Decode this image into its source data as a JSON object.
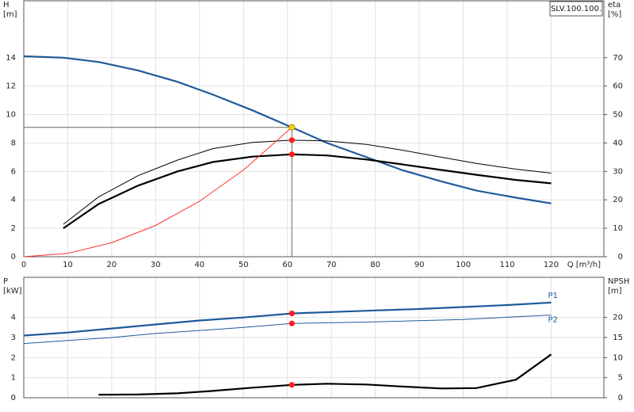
{
  "chart_data": [
    {
      "type": "line",
      "title": "SLV.100.100.",
      "ylabel": [
        "H",
        "[m]"
      ],
      "y2label": [
        "eta",
        "[%]"
      ],
      "xlabel": "Q [m³/h]",
      "xlim": [
        0,
        132
      ],
      "xticks": [
        0,
        10,
        20,
        30,
        40,
        50,
        60,
        70,
        80,
        90,
        100,
        110,
        120
      ],
      "ylim": [
        0,
        18
      ],
      "yticks": [
        0,
        2,
        4,
        6,
        8,
        10,
        12,
        14
      ],
      "y2lim": [
        0,
        90
      ],
      "y2ticks": [
        0,
        10,
        20,
        30,
        40,
        50,
        60,
        70
      ],
      "grid": true,
      "series": [
        {
          "color": "#1f5a9a",
          "thick": true,
          "x": [
            0,
            9,
            17,
            26,
            35,
            43,
            52,
            61,
            69,
            78,
            86,
            95,
            103,
            112,
            120
          ],
          "values": [
            14.1,
            14.0,
            13.7,
            13.1,
            12.3,
            11.4,
            10.3,
            9.1,
            8.0,
            7.0,
            6.1,
            5.3,
            4.65,
            4.15,
            3.75
          ]
        },
        {
          "color": "#000000",
          "thick": false,
          "axis": "y2",
          "x": [
            9,
            17,
            26,
            35,
            43,
            52,
            61,
            69,
            78,
            86,
            95,
            103,
            112,
            120
          ],
          "values": [
            11.4,
            21,
            28.5,
            34,
            38,
            40.2,
            41,
            40.7,
            39.5,
            37.5,
            35,
            32.8,
            30.8,
            29.4
          ]
        },
        {
          "color": "#000000",
          "thick": true,
          "axis": "y2",
          "x": [
            9,
            17,
            26,
            35,
            43,
            52,
            61,
            69,
            78,
            86,
            95,
            103,
            112,
            120
          ],
          "values": [
            10,
            18.5,
            25,
            30,
            33.3,
            35.2,
            36,
            35.6,
            34.2,
            32.5,
            30.5,
            28.8,
            27,
            25.8
          ]
        },
        {
          "color": "#ff3030",
          "thick": false,
          "x": [
            0,
            10,
            20,
            30,
            40,
            50,
            61
          ],
          "values": [
            0,
            0.24,
            0.98,
            2.2,
            3.9,
            6.1,
            9.1
          ]
        }
      ],
      "markers": [
        {
          "x": 61,
          "y": 9.1,
          "color": "#f7d117",
          "guides": true
        },
        {
          "x": 61,
          "y": 41,
          "axis": "y2",
          "color": "#ff2020"
        },
        {
          "x": 61,
          "y": 36,
          "axis": "y2",
          "color": "#ff2020"
        }
      ]
    },
    {
      "type": "line",
      "ylabel": [
        "P",
        "[kW]"
      ],
      "y2label": [
        "NPSH",
        "[m]"
      ],
      "xlim": [
        0,
        132
      ],
      "xticks": [
        0,
        10,
        20,
        30,
        40,
        50,
        60,
        70,
        80,
        90,
        100,
        110,
        120
      ],
      "ylim": [
        0,
        6
      ],
      "yticks": [
        0,
        1,
        2,
        3,
        4
      ],
      "y2lim": [
        0,
        30
      ],
      "y2ticks": [
        0,
        5,
        10,
        15,
        20
      ],
      "grid": true,
      "series": [
        {
          "name": "P1",
          "color": "#1f5a9a",
          "thick": true,
          "x": [
            0,
            10,
            20,
            30,
            40,
            50,
            61,
            70,
            80,
            90,
            100,
            110,
            120
          ],
          "values": [
            3.1,
            3.25,
            3.45,
            3.65,
            3.85,
            4.0,
            4.2,
            4.27,
            4.35,
            4.42,
            4.52,
            4.62,
            4.74
          ]
        },
        {
          "name": "P2",
          "color": "#1f5a9a",
          "thick": false,
          "x": [
            0,
            10,
            20,
            30,
            40,
            50,
            61,
            80,
            100,
            120
          ],
          "values": [
            2.7,
            2.85,
            3.0,
            3.2,
            3.35,
            3.5,
            3.7,
            3.78,
            3.9,
            4.12
          ]
        },
        {
          "color": "#000000",
          "thick": true,
          "axis": "y2",
          "x": [
            17,
            26,
            35,
            43,
            52,
            61,
            69,
            78,
            86,
            95,
            103,
            112,
            120
          ],
          "values": [
            0.75,
            0.8,
            1.1,
            1.7,
            2.5,
            3.2,
            3.5,
            3.3,
            2.8,
            2.3,
            2.4,
            4.5,
            10.8
          ]
        }
      ],
      "markers": [
        {
          "x": 61,
          "y": 4.2,
          "color": "#ff2020"
        },
        {
          "x": 61,
          "y": 3.7,
          "color": "#ff2020"
        },
        {
          "x": 61,
          "y": 3.2,
          "axis": "y2",
          "color": "#ff2020"
        }
      ]
    }
  ]
}
